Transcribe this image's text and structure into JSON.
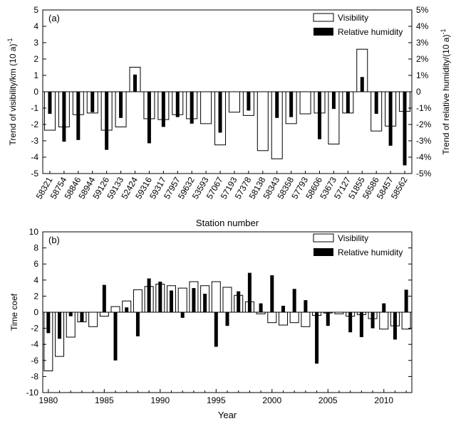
{
  "chart_data": [
    {
      "type": "bar",
      "panel_label": "(a)",
      "xlabel": "Station number",
      "ylabel": "Trend of visibility/km (10 a)",
      "ylabel_sup": "-1",
      "y2label": "Trend of relative humidity/(10 a)",
      "y2label_sup": "-1",
      "ylim": [
        -5,
        5
      ],
      "y2lim": [
        -5,
        5
      ],
      "yticks": [
        "5",
        "4",
        "3",
        "2",
        "1",
        "0",
        "-1",
        "-2",
        "-3",
        "-4",
        "-5"
      ],
      "y2ticks": [
        "5%",
        "4%",
        "3%",
        "2%",
        "1%",
        "0",
        "-1%",
        "-2%",
        "-3%",
        "-4%",
        "-5%"
      ],
      "legend_placement": "top-right",
      "categories": [
        "58321",
        "58754",
        "58846",
        "58944",
        "59126",
        "59133",
        "52424",
        "59316",
        "59317",
        "57957",
        "59632",
        "53593",
        "57067",
        "57193",
        "57378",
        "58138",
        "58343",
        "58358",
        "57793",
        "58606",
        "53673",
        "57127",
        "51855",
        "56586",
        "58457",
        "58562"
      ],
      "series": [
        {
          "name": "Visibility",
          "style": "hollow",
          "values": [
            -2.35,
            -2.15,
            -1.4,
            -1.3,
            -2.35,
            -2.15,
            1.5,
            -1.65,
            -1.7,
            -1.4,
            -1.65,
            -1.95,
            -3.25,
            -1.25,
            -1.45,
            -3.6,
            -4.1,
            -1.95,
            -1.35,
            -1.3,
            -3.2,
            -1.3,
            2.6,
            -2.4,
            -2.1,
            -1.2
          ]
        },
        {
          "name": "Relative humidity",
          "style": "solid",
          "values": [
            -1.35,
            -3.05,
            -2.95,
            -1.25,
            -3.55,
            -1.6,
            1.05,
            -3.15,
            -2.15,
            -1.55,
            -1.95,
            null,
            -2.5,
            null,
            -1.15,
            null,
            -1.6,
            -1.55,
            null,
            -2.9,
            -1.05,
            -1.3,
            0.9,
            -1.35,
            -3.3,
            -4.5
          ]
        }
      ]
    },
    {
      "type": "bar",
      "panel_label": "(b)",
      "xlabel": "Year",
      "ylabel": "Time coef",
      "ylim": [
        -10,
        10
      ],
      "xlim": [
        1979.5,
        2012.5
      ],
      "yticks": [
        "10",
        "8",
        "6",
        "4",
        "2",
        "0",
        "-2",
        "-4",
        "-6",
        "-8",
        "-10"
      ],
      "xticks": [
        "1980",
        "1985",
        "1990",
        "1995",
        "2000",
        "2005",
        "2010"
      ],
      "legend_placement": "top-right",
      "x": [
        1980,
        1981,
        1982,
        1983,
        1984,
        1985,
        1986,
        1987,
        1988,
        1989,
        1990,
        1991,
        1992,
        1993,
        1994,
        1995,
        1996,
        1997,
        1998,
        1999,
        2000,
        2001,
        2002,
        2003,
        2004,
        2005,
        2006,
        2007,
        2008,
        2009,
        2010,
        2011,
        2012
      ],
      "series": [
        {
          "name": "Visibility",
          "style": "hollow",
          "values": [
            -7.3,
            -5.5,
            -3.1,
            -1.2,
            -1.8,
            -0.5,
            0.7,
            1.4,
            2.8,
            3.2,
            3.5,
            3.3,
            3.0,
            3.8,
            3.3,
            3.8,
            3.1,
            2.1,
            1.3,
            -0.2,
            -1.3,
            -1.6,
            -1.3,
            -1.8,
            -0.4,
            -0.1,
            -0.2,
            -0.5,
            -0.3,
            -0.8,
            -2.1,
            -1.7,
            -2.1
          ]
        },
        {
          "name": "Relative humidity",
          "style": "solid",
          "values": [
            -2.6,
            -3.3,
            -0.5,
            -1.2,
            null,
            3.4,
            -6.0,
            0.6,
            -3.0,
            4.2,
            3.8,
            2.7,
            -0.7,
            3.0,
            2.3,
            -4.3,
            -1.7,
            2.6,
            4.9,
            1.1,
            4.6,
            0.8,
            2.9,
            1.5,
            -6.4,
            -1.7,
            null,
            -2.5,
            -3.1,
            -2.0,
            1.1,
            -3.4,
            2.8
          ]
        }
      ]
    }
  ]
}
